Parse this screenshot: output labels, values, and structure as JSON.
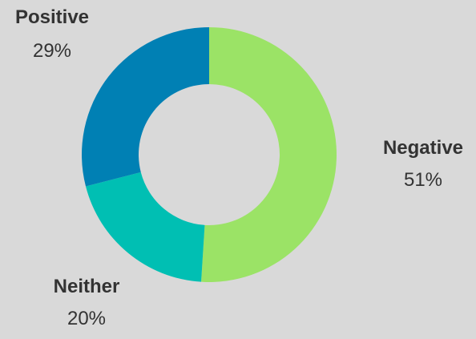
{
  "chart_data": {
    "type": "pie",
    "donut": true,
    "slices": [
      {
        "label": "Negative",
        "percent_label": "51%",
        "value": 51,
        "color": "#9be366"
      },
      {
        "label": "Neither",
        "percent_label": "20%",
        "value": 20,
        "color": "#00bfb3"
      },
      {
        "label": "Positive",
        "percent_label": "29%",
        "value": 29,
        "color": "#0080b4"
      }
    ],
    "start_angle": "top",
    "direction": "clockwise",
    "legend": "none",
    "background": "#d9d9d9"
  }
}
